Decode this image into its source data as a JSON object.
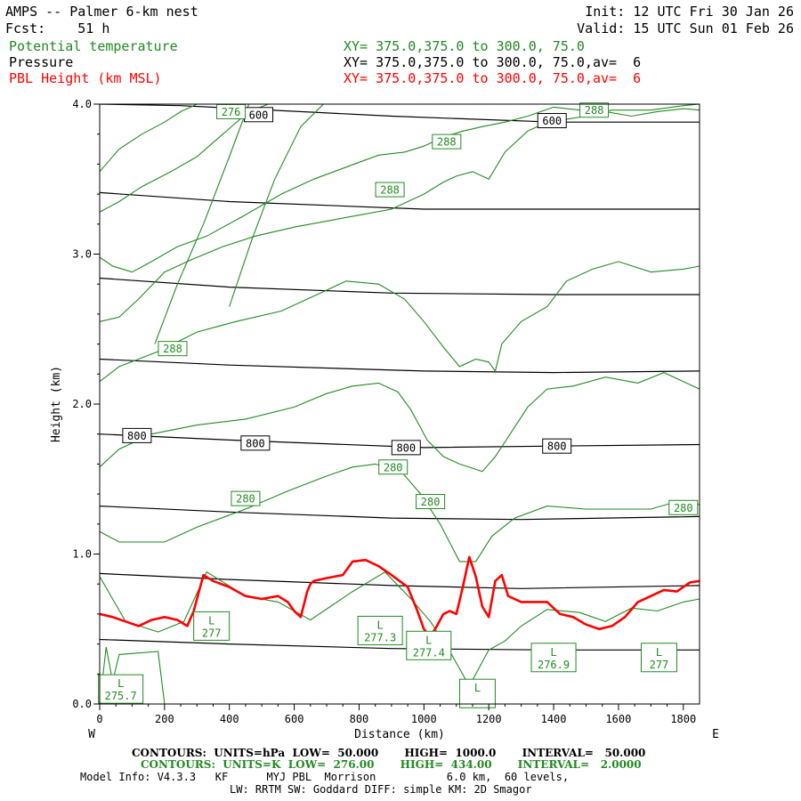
{
  "header": {
    "title": "AMPS -- Palmer 6-km nest",
    "init": "Init: 12 UTC Fri 30 Jan 26",
    "fcst": "Fcst:    51 h",
    "valid": "Valid: 15 UTC Sun 01 Feb 26",
    "fields": [
      {
        "name": "Potential temperature",
        "xy": "XY= 375.0,375.0 to 300.0, 75.0",
        "color": "#218a21"
      },
      {
        "name": "Pressure",
        "xy": "XY= 375.0,375.0 to 300.0, 75.0,av=  6",
        "color": "#000000"
      },
      {
        "name": "PBL Height (km MSL)",
        "xy": "XY= 375.0,375.0 to 300.0, 75.0,av=  6",
        "color": "#ff0000"
      }
    ]
  },
  "footer": {
    "contours_pressure": "CONTOURS:  UNITS=hPa  LOW=  50.000       HIGH=  1000.0       INTERVAL=   50.000",
    "contours_theta": "CONTOURS:  UNITS=K  LOW=  276.00       HIGH=  434.00       INTERVAL=   2.0000",
    "model_info": "Model Info: V4.3.3   KF      MYJ PBL  Morrison           6.0 km,  60 levels,",
    "model_info2": "LW: RRTM SW: Goddard DIFF: simple KM: 2D Smagor"
  },
  "chart_data": {
    "type": "line",
    "title": "AMPS -- Palmer 6-km nest",
    "xlabel": "Distance (km)",
    "ylabel": "Height (km)",
    "west_label": "W",
    "east_label": "E",
    "xlim": [
      0,
      1850
    ],
    "ylim": [
      0.0,
      4.0
    ],
    "xticks": [
      0,
      200,
      400,
      600,
      800,
      1000,
      1200,
      1400,
      1600,
      1800
    ],
    "xtick_labels": [
      "0",
      "200",
      "400",
      "600",
      "800",
      "1000",
      "1200",
      "1400",
      "1600",
      "1800"
    ],
    "yticks": [
      0.0,
      1.0,
      2.0,
      3.0,
      4.0
    ],
    "ytick_labels": [
      "0.0",
      "1.0",
      "2.0",
      "3.0",
      "4.0"
    ],
    "colors": {
      "pressure": "#000000",
      "theta": "#218a21",
      "pbl": "#ff0000"
    },
    "pressure_lines": [
      {
        "x": [
          0,
          400,
          900,
          1400,
          1850
        ],
        "y": [
          0.43,
          0.4,
          0.37,
          0.36,
          0.36
        ]
      },
      {
        "x": [
          0,
          400,
          900,
          1300,
          1850
        ],
        "y": [
          0.87,
          0.83,
          0.79,
          0.77,
          0.79
        ]
      },
      {
        "x": [
          0,
          400,
          900,
          1300,
          1850
        ],
        "y": [
          1.32,
          1.28,
          1.24,
          1.23,
          1.25
        ]
      },
      {
        "x": [
          0,
          400,
          1000,
          1400,
          1850
        ],
        "y": [
          1.8,
          1.76,
          1.71,
          1.72,
          1.73
        ]
      },
      {
        "x": [
          0,
          400,
          1000,
          1400,
          1850
        ],
        "y": [
          2.3,
          2.26,
          2.22,
          2.21,
          2.22
        ]
      },
      {
        "x": [
          0,
          400,
          900,
          1400,
          1850
        ],
        "y": [
          2.84,
          2.78,
          2.74,
          2.73,
          2.73
        ]
      },
      {
        "x": [
          0,
          400,
          1000,
          1400,
          1850
        ],
        "y": [
          3.41,
          3.35,
          3.3,
          3.3,
          3.3
        ]
      },
      {
        "x": [
          0,
          250,
          900,
          1400,
          1850
        ],
        "y": [
          4.0,
          3.99,
          3.92,
          3.88,
          3.88
        ]
      }
    ],
    "pressure_labels": [
      {
        "text": "600",
        "x": 490,
        "y": 3.93
      },
      {
        "text": "600",
        "x": 1395,
        "y": 3.89
      },
      {
        "text": "800",
        "x": 115,
        "y": 1.79
      },
      {
        "text": "800",
        "x": 480,
        "y": 1.74
      },
      {
        "text": "800",
        "x": 945,
        "y": 1.71
      },
      {
        "text": "800",
        "x": 1410,
        "y": 1.72
      }
    ],
    "theta_lines": [
      {
        "x": [
          0,
          20,
          40,
          60,
          180,
          200
        ],
        "y": [
          0.0,
          0.38,
          0.15,
          0.33,
          0.35,
          0.0
        ]
      },
      {
        "x": [
          0,
          80,
          180,
          260,
          330,
          450,
          550,
          650,
          780,
          880,
          960,
          1020,
          1080,
          1140,
          1200,
          1250,
          1300,
          1380,
          1480,
          1560,
          1640,
          1720,
          1800,
          1850
        ],
        "y": [
          0.85,
          0.55,
          0.48,
          0.55,
          0.88,
          0.72,
          0.68,
          0.56,
          0.75,
          0.88,
          0.7,
          0.55,
          0.35,
          0.12,
          0.36,
          0.42,
          0.52,
          0.63,
          0.61,
          0.55,
          0.64,
          0.62,
          0.68,
          0.7
        ]
      },
      {
        "x": [
          0,
          60,
          200,
          300,
          450,
          580,
          700,
          780,
          850,
          930,
          990,
          1050,
          1110,
          1160,
          1210,
          1280,
          1380,
          1500,
          1620,
          1700,
          1780,
          1850
        ],
        "y": [
          1.15,
          1.08,
          1.08,
          1.18,
          1.3,
          1.42,
          1.52,
          1.58,
          1.6,
          1.55,
          1.4,
          1.2,
          0.95,
          0.95,
          1.12,
          1.24,
          1.32,
          1.3,
          1.3,
          1.3,
          1.35,
          1.33
        ]
      },
      {
        "x": [
          0,
          60,
          160,
          300,
          450,
          600,
          700,
          780,
          860,
          920,
          960,
          1010,
          1060,
          1110,
          1180,
          1220,
          1260,
          1320,
          1380,
          1460,
          1560,
          1660,
          1740,
          1800,
          1850
        ],
        "y": [
          1.58,
          1.7,
          1.8,
          1.86,
          1.9,
          1.98,
          2.07,
          2.12,
          2.14,
          2.08,
          1.96,
          1.76,
          1.65,
          1.6,
          1.55,
          1.65,
          1.78,
          1.98,
          2.1,
          2.12,
          2.18,
          2.14,
          2.21,
          2.15,
          2.1
        ]
      },
      {
        "x": [
          0,
          60,
          180,
          300,
          420,
          560,
          660,
          760,
          860,
          940,
          1000,
          1060,
          1110,
          1160,
          1200,
          1220,
          1240,
          1300,
          1380,
          1440,
          1520,
          1600,
          1700,
          1800,
          1850
        ],
        "y": [
          2.15,
          2.25,
          2.35,
          2.48,
          2.55,
          2.62,
          2.72,
          2.82,
          2.8,
          2.7,
          2.55,
          2.38,
          2.25,
          2.3,
          2.28,
          2.22,
          2.4,
          2.55,
          2.65,
          2.82,
          2.9,
          2.95,
          2.88,
          2.9,
          2.92
        ]
      },
      {
        "x": [
          0,
          60,
          120,
          200,
          280,
          380,
          480,
          600,
          700,
          800,
          900,
          1000,
          1060,
          1100,
          1150,
          1200,
          1250,
          1320,
          1380,
          1440,
          1500,
          1580,
          1700,
          1800,
          1850
        ],
        "y": [
          2.55,
          2.58,
          2.7,
          2.88,
          2.96,
          3.05,
          3.12,
          3.18,
          3.22,
          3.26,
          3.3,
          3.4,
          3.48,
          3.52,
          3.55,
          3.5,
          3.68,
          3.82,
          3.88,
          3.9,
          3.92,
          3.96,
          3.96,
          3.99,
          4.0
        ]
      },
      {
        "x": [
          0,
          40,
          100,
          160,
          240,
          330,
          440,
          560,
          660,
          760,
          860,
          940,
          1000,
          1060,
          1120,
          1180,
          1250,
          1320,
          1400,
          1480,
          1560,
          1640,
          1720,
          1800,
          1850
        ],
        "y": [
          2.98,
          2.92,
          2.88,
          2.95,
          3.05,
          3.12,
          3.25,
          3.4,
          3.5,
          3.58,
          3.66,
          3.68,
          3.72,
          3.78,
          3.82,
          3.85,
          3.88,
          3.92,
          3.98,
          3.96,
          3.95,
          3.92,
          3.95,
          3.97,
          3.96
        ]
      },
      {
        "x": [
          0,
          60,
          130,
          220,
          300,
          380,
          460,
          520,
          580,
          640
        ],
        "y": [
          3.28,
          3.35,
          3.45,
          3.55,
          3.65,
          3.8,
          3.95,
          4.0,
          4.0,
          4.0
        ]
      },
      {
        "x": [
          0,
          60,
          130,
          200,
          250,
          300,
          380,
          440,
          480,
          520,
          600,
          660
        ],
        "y": [
          3.55,
          3.7,
          3.8,
          3.88,
          3.95,
          4.0,
          4.0,
          4.0,
          4.0,
          4.0,
          4.0,
          4.0
        ]
      },
      {
        "x": [
          400,
          470,
          540,
          620,
          690
        ],
        "y": [
          2.65,
          3.1,
          3.5,
          3.85,
          4.0
        ]
      },
      {
        "x": [
          170,
          240,
          320,
          400,
          460
        ],
        "y": [
          2.4,
          2.8,
          3.2,
          3.65,
          4.0
        ]
      }
    ],
    "theta_labels": [
      {
        "text": "276",
        "x": 405,
        "y": 3.95
      },
      {
        "text": "288",
        "x": 1525,
        "y": 3.96
      },
      {
        "text": "288",
        "x": 1070,
        "y": 3.75
      },
      {
        "text": "288",
        "x": 895,
        "y": 3.43
      },
      {
        "text": "288",
        "x": 225,
        "y": 2.37
      },
      {
        "text": "280",
        "x": 905,
        "y": 1.58
      },
      {
        "text": "280",
        "x": 450,
        "y": 1.37
      },
      {
        "text": "280",
        "x": 1020,
        "y": 1.35
      },
      {
        "text": "280",
        "x": 1800,
        "y": 1.31
      }
    ],
    "lows": [
      {
        "letter": "L",
        "value": "277",
        "x": 345,
        "y": 0.52
      },
      {
        "letter": "L",
        "value": "277.3",
        "x": 865,
        "y": 0.49
      },
      {
        "letter": "L",
        "value": "277.4",
        "x": 1015,
        "y": 0.39
      },
      {
        "letter": "L",
        "value": "276.9",
        "x": 1400,
        "y": 0.31
      },
      {
        "letter": "L",
        "value": "277",
        "x": 1725,
        "y": 0.31
      },
      {
        "letter": "L",
        "value": "275.7",
        "x": 65,
        "y": 0.1
      },
      {
        "letter": "L",
        "value": "",
        "x": 1165,
        "y": 0.07
      }
    ],
    "pbl_height": {
      "x": [
        0,
        40,
        80,
        120,
        160,
        200,
        240,
        270,
        290,
        310,
        320,
        350,
        400,
        450,
        500,
        550,
        580,
        600,
        620,
        640,
        650,
        660,
        700,
        750,
        780,
        820,
        860,
        900,
        950,
        980,
        1000,
        1020,
        1040,
        1060,
        1080,
        1100,
        1120,
        1140,
        1160,
        1180,
        1200,
        1220,
        1240,
        1260,
        1300,
        1340,
        1380,
        1420,
        1460,
        1500,
        1540,
        1580,
        1620,
        1660,
        1700,
        1740,
        1780,
        1820,
        1850
      ],
      "y": [
        0.6,
        0.58,
        0.55,
        0.52,
        0.56,
        0.58,
        0.56,
        0.52,
        0.62,
        0.78,
        0.86,
        0.82,
        0.78,
        0.72,
        0.7,
        0.72,
        0.68,
        0.62,
        0.58,
        0.75,
        0.8,
        0.82,
        0.84,
        0.86,
        0.95,
        0.96,
        0.92,
        0.86,
        0.78,
        0.62,
        0.5,
        0.45,
        0.52,
        0.6,
        0.62,
        0.6,
        0.78,
        0.98,
        0.85,
        0.65,
        0.58,
        0.82,
        0.86,
        0.72,
        0.68,
        0.68,
        0.68,
        0.6,
        0.58,
        0.53,
        0.5,
        0.52,
        0.58,
        0.68,
        0.72,
        0.76,
        0.75,
        0.81,
        0.82
      ]
    }
  }
}
